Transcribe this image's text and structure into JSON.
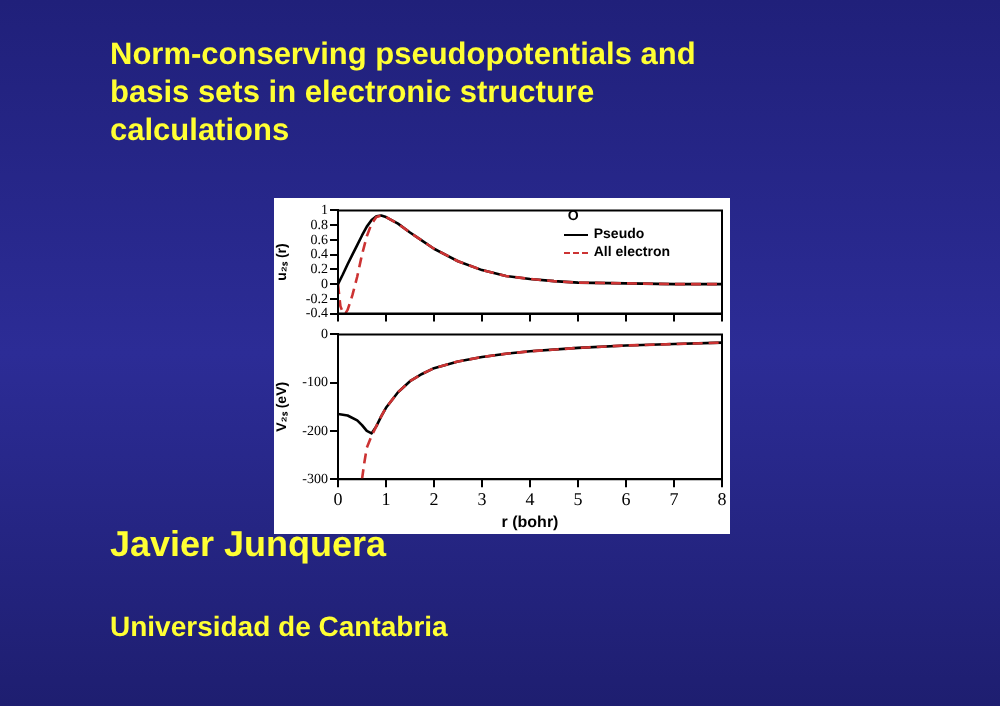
{
  "chart_data": [
    {
      "type": "line",
      "title": "Norm-conserving pseudopotentials and basis sets in electronic structure calculations",
      "ylabel": "u₂ₛ (r)",
      "legend_title": "O",
      "legend": "top right",
      "tick_labels": "y",
      "grid": false,
      "marker": "none",
      "xlim": [
        0,
        8
      ],
      "xticks": [
        0,
        1,
        2,
        3,
        4,
        5,
        6,
        7,
        8
      ],
      "ylim": [
        -0.4,
        1
      ],
      "yticks": [
        -0.4,
        -0.2,
        0,
        0.2,
        0.4,
        0.6,
        0.8,
        1
      ],
      "series": [
        {
          "name": "Pseudo",
          "color": "#000000",
          "line_style": "solid",
          "x": [
            0,
            0.1,
            0.2,
            0.3,
            0.4,
            0.5,
            0.6,
            0.7,
            0.8,
            0.9,
            1,
            1.25,
            1.5,
            1.75,
            2,
            2.5,
            3,
            3.5,
            4,
            4.5,
            5,
            6,
            7,
            8
          ],
          "values": [
            0,
            0.13,
            0.27,
            0.4,
            0.53,
            0.66,
            0.78,
            0.87,
            0.92,
            0.93,
            0.91,
            0.82,
            0.7,
            0.59,
            0.48,
            0.31,
            0.19,
            0.11,
            0.07,
            0.04,
            0.02,
            0.01,
            0,
            0
          ]
        },
        {
          "name": "All electron",
          "color": "#cc3333",
          "line_style": "dashed",
          "x": [
            0,
            0.05,
            0.1,
            0.15,
            0.2,
            0.3,
            0.4,
            0.5,
            0.6,
            0.7,
            0.8,
            0.9,
            1,
            1.25,
            1.5,
            1.75,
            2,
            2.5,
            3,
            3.5,
            4,
            4.5,
            5,
            6,
            7,
            8
          ],
          "values": [
            0,
            -0.3,
            -0.38,
            -0.4,
            -0.35,
            -0.15,
            0.1,
            0.4,
            0.65,
            0.82,
            0.91,
            0.93,
            0.91,
            0.82,
            0.7,
            0.59,
            0.48,
            0.31,
            0.19,
            0.11,
            0.07,
            0.04,
            0.02,
            0.01,
            0,
            0
          ]
        }
      ]
    },
    {
      "type": "line",
      "xlabel": "r (bohr)",
      "ylabel": "V₂ₛ (eV)",
      "legend": false,
      "grid": false,
      "marker": "none",
      "annotations": [
        "Javier Junquera",
        "Universidad de Cantabria"
      ],
      "xlim": [
        0,
        8
      ],
      "xticks": [
        0,
        1,
        2,
        3,
        4,
        5,
        6,
        7,
        8
      ],
      "ylim": [
        -300,
        0
      ],
      "yticks": [
        -300,
        -200,
        -100,
        0
      ],
      "series": [
        {
          "color": "#000000",
          "line_style": "solid",
          "x": [
            0,
            0.2,
            0.4,
            0.5,
            0.6,
            0.7,
            0.8,
            0.9,
            1,
            1.25,
            1.5,
            1.75,
            2,
            2.5,
            3,
            3.5,
            4,
            5,
            6,
            7,
            8
          ],
          "values": [
            -165,
            -168,
            -178,
            -188,
            -200,
            -205,
            -190,
            -170,
            -152,
            -120,
            -97,
            -82,
            -70,
            -56,
            -47,
            -40,
            -35,
            -28,
            -23,
            -20,
            -17
          ]
        },
        {
          "color": "#cc3333",
          "line_style": "dashed",
          "x": [
            0.5,
            0.55,
            0.6,
            0.7,
            0.8,
            0.9,
            1,
            1.25,
            1.5,
            1.75,
            2,
            2.5,
            3,
            3.5,
            4,
            5,
            6,
            7,
            8
          ],
          "values": [
            -300,
            -265,
            -235,
            -210,
            -190,
            -170,
            -152,
            -120,
            -97,
            -82,
            -70,
            -56,
            -47,
            -40,
            -35,
            -28,
            -23,
            -20,
            -17
          ]
        }
      ]
    }
  ]
}
